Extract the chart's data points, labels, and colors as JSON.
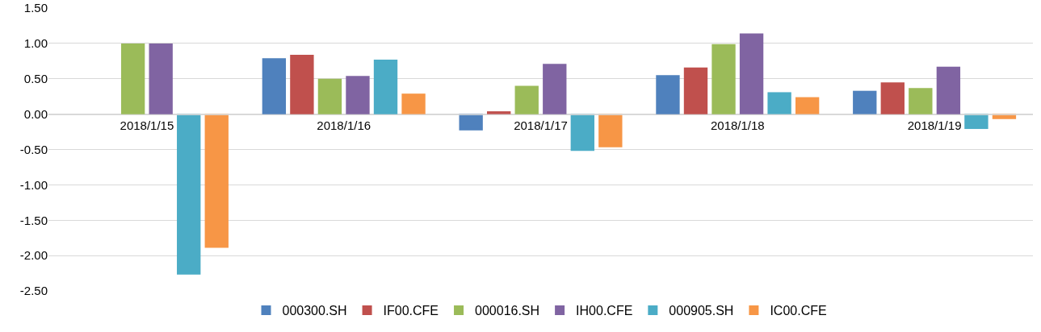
{
  "chart_data": {
    "type": "bar",
    "categories": [
      "2018/1/15",
      "2018/1/16",
      "2018/1/17",
      "2018/1/18",
      "2018/1/19"
    ],
    "series": [
      {
        "name": "000300.SH",
        "color": "#4f81bd",
        "values": [
          null,
          0.79,
          -0.23,
          0.55,
          0.33
        ]
      },
      {
        "name": "IF00.CFE",
        "color": "#c0504d",
        "values": [
          null,
          0.84,
          0.04,
          0.66,
          0.45
        ]
      },
      {
        "name": "000016.SH",
        "color": "#9bbb59",
        "values": [
          1.0,
          0.5,
          0.4,
          0.99,
          0.37
        ]
      },
      {
        "name": "IH00.CFE",
        "color": "#8064a2",
        "values": [
          1.0,
          0.54,
          0.71,
          1.14,
          0.67
        ]
      },
      {
        "name": "000905.SH",
        "color": "#4bacc6",
        "values": [
          -2.27,
          0.77,
          -0.52,
          0.31,
          -0.21
        ]
      },
      {
        "name": "IC00.CFE",
        "color": "#f79646",
        "values": [
          -1.89,
          0.29,
          -0.47,
          0.24,
          -0.07
        ]
      }
    ],
    "ylim": [
      -2.5,
      1.5
    ],
    "yticks": [
      {
        "value": -2.5,
        "label": "-2.50"
      },
      {
        "value": -2,
        "label": "-2.00"
      },
      {
        "value": -1.5,
        "label": "-1.50"
      },
      {
        "value": -1,
        "label": "-1.00"
      },
      {
        "value": -0.5,
        "label": "-0.50"
      },
      {
        "value": 0,
        "label": "0.00"
      },
      {
        "value": 0.5,
        "label": "0.50"
      },
      {
        "value": 1,
        "label": "1.00"
      },
      {
        "value": 1.5,
        "label": "1.50"
      }
    ],
    "grid": "y",
    "legend": "bottom"
  }
}
